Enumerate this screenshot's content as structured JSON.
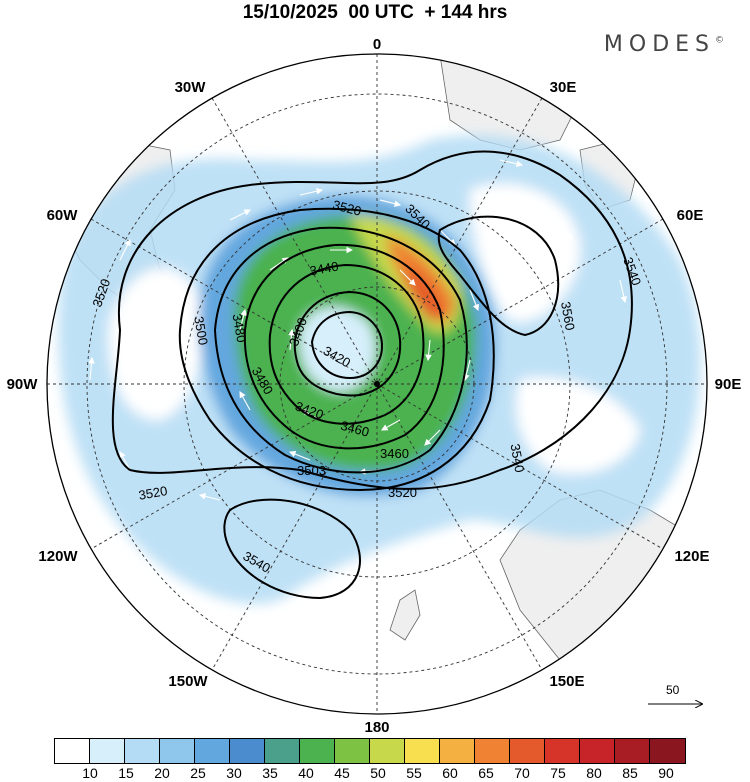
{
  "header": {
    "title": "15/10/2025  00 UTC  + 144 hrs",
    "brand": "MODES",
    "brand_mark": "©"
  },
  "map": {
    "projection": "south polar stereographic",
    "longitude_labels": [
      "0",
      "30E",
      "60E",
      "90E",
      "120E",
      "150E",
      "180",
      "150W",
      "120W",
      "90W",
      "60W",
      "30W"
    ],
    "contour_labels": [
      "3520",
      "3540",
      "3560",
      "3540",
      "3520",
      "3500",
      "3480",
      "3460",
      "3440",
      "3420",
      "3400",
      "3480",
      "3520",
      "3540",
      "3503",
      "3540",
      "3460",
      "3520",
      "3420"
    ],
    "vector_scale_label": "50"
  },
  "colorbar": {
    "colors": [
      "#ffffff",
      "#d6effb",
      "#b4dcf4",
      "#8ec6ec",
      "#63a7df",
      "#4a8ccd",
      "#4ba08c",
      "#4cb24f",
      "#7dc242",
      "#c7d94b",
      "#f7df4f",
      "#f4b142",
      "#ef8233",
      "#e55a2c",
      "#d63428",
      "#c62429",
      "#a81c24",
      "#8a1620"
    ],
    "labels": [
      "10",
      "15",
      "20",
      "25",
      "30",
      "35",
      "40",
      "45",
      "50",
      "55",
      "60",
      "65",
      "70",
      "75",
      "80",
      "85",
      "90"
    ]
  }
}
